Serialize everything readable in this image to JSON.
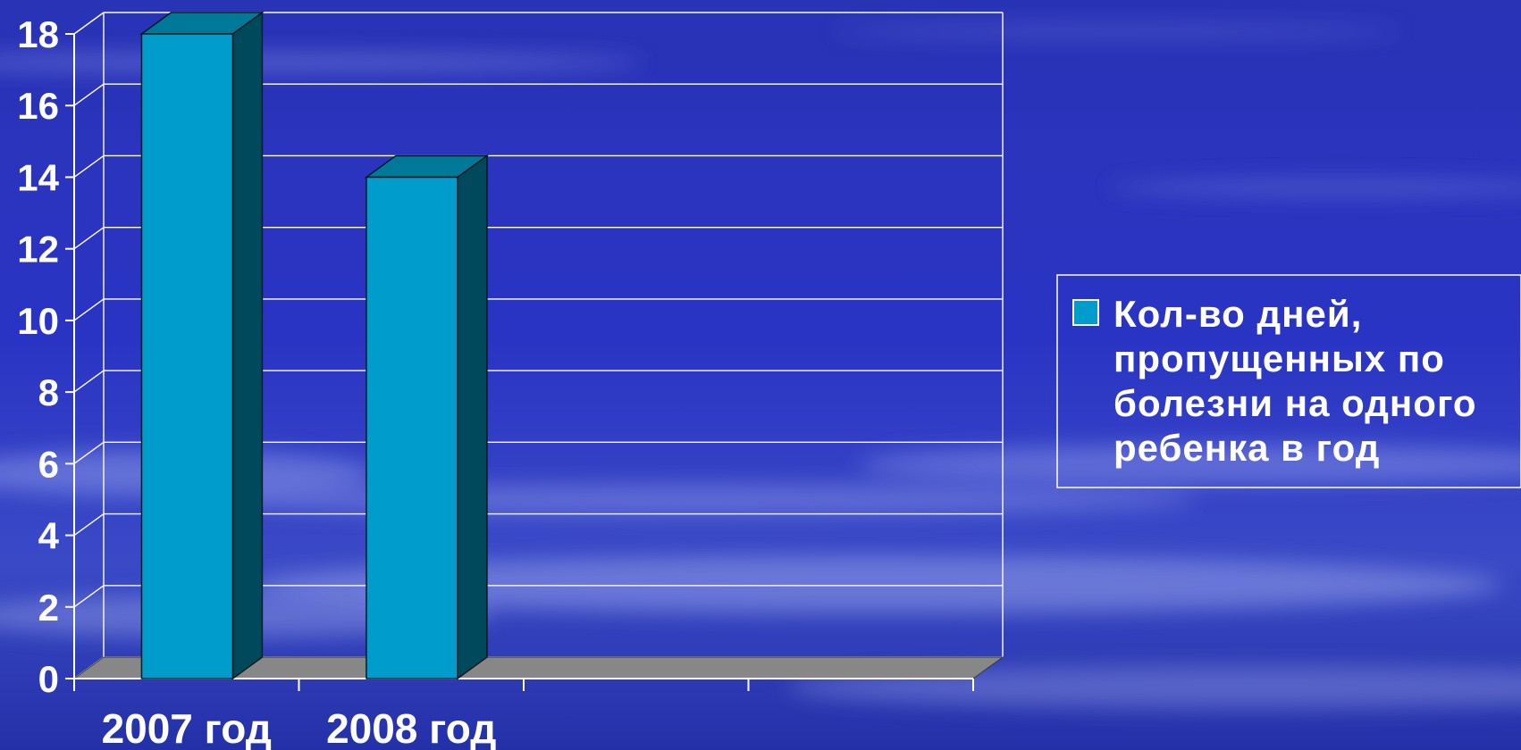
{
  "chart_data": {
    "type": "bar",
    "categories": [
      "2007 год",
      "2008 год",
      "",
      ""
    ],
    "series": [
      {
        "name": "Кол-во дней, пропущенных по болезни на одного ребенка в год",
        "values": [
          18,
          14,
          null,
          null
        ]
      }
    ],
    "legend_lines": [
      "Кол-во дней,",
      "пропущенных по",
      "болезни на одного",
      "ребенка в год"
    ],
    "ylim": [
      0,
      18
    ],
    "yticks": [
      0,
      2,
      4,
      6,
      8,
      10,
      12,
      14,
      16,
      18
    ],
    "xlabel": "",
    "ylabel": "",
    "grid": true,
    "legend_position": "right",
    "style": "3d",
    "colors": {
      "bar_front": "#009ccc",
      "bar_side": "#00485c",
      "bar_top": "#007898",
      "floor": "#878787",
      "axis": "#ffffff",
      "text": "#ffffff",
      "background": "#2a32bd"
    }
  }
}
